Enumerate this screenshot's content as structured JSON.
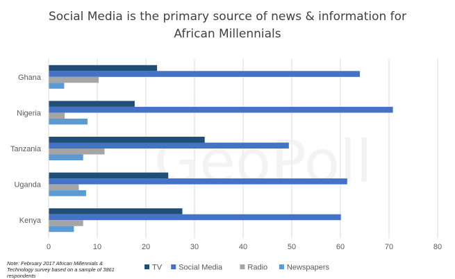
{
  "title_line1": "Social Media is the primary source of news & information for",
  "title_line2": "African Millennials",
  "watermark": "GeoPoll",
  "note": "Note: February 2017 African Millennials & Technology survey based on a sample of 3861 respondents",
  "chart_data": {
    "type": "bar",
    "orientation": "horizontal",
    "categories": [
      "Ghana",
      "Nigeria",
      "Tanzania",
      "Uganda",
      "Kenya"
    ],
    "series": [
      {
        "name": "TV",
        "color": "#1F4E79",
        "values": [
          22.3,
          17.7,
          32.1,
          24.6,
          27.5
        ]
      },
      {
        "name": "Social Media",
        "color": "#4472C4",
        "values": [
          64,
          70.8,
          49.4,
          61.4,
          60.1
        ]
      },
      {
        "name": "Radio",
        "color": "#A5A5A5",
        "values": [
          10.3,
          3.3,
          11.5,
          6.2,
          7.1
        ]
      },
      {
        "name": "Newspapers",
        "color": "#5B9BD5",
        "values": [
          3.2,
          8,
          7.1,
          7.7,
          5.2
        ]
      }
    ],
    "xlim": [
      0,
      80
    ],
    "xticks": [
      0,
      10,
      20,
      30,
      40,
      50,
      60,
      70,
      80
    ],
    "grid": true,
    "legend_position": "bottom"
  }
}
